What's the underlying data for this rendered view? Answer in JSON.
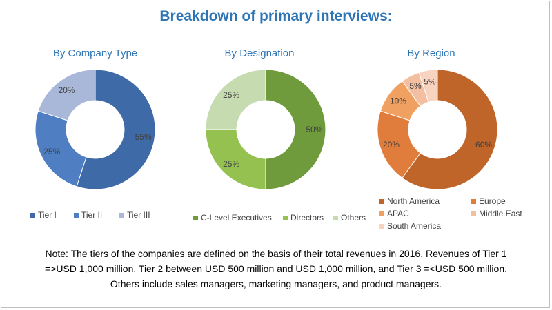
{
  "title": "Breakdown of primary interviews:",
  "chart_data": [
    {
      "type": "pie",
      "title": "By Company Type",
      "categories": [
        "Tier I",
        "Tier II",
        "Tier III"
      ],
      "values": [
        55,
        25,
        20
      ],
      "labels": [
        "55%",
        "25%",
        "20%"
      ],
      "colors": [
        "#3f6aa8",
        "#4f7fc2",
        "#a9b8d9"
      ],
      "legend": "bottom"
    },
    {
      "type": "pie",
      "title": "By Designation",
      "categories": [
        "C-Level Executives",
        "Directors",
        "Others"
      ],
      "values": [
        50,
        25,
        25
      ],
      "labels": [
        "50%",
        "25%",
        "25%"
      ],
      "colors": [
        "#6f9b3c",
        "#94c150",
        "#c7dbb0"
      ],
      "legend": "bottom"
    },
    {
      "type": "pie",
      "title": "By Region",
      "categories": [
        "North America",
        "Europe",
        "APAC",
        "Middle East",
        "South America"
      ],
      "values": [
        60,
        20,
        10,
        5,
        5
      ],
      "labels": [
        "60%",
        "20%",
        "10%",
        "5%",
        "5%"
      ],
      "colors": [
        "#c0652a",
        "#e07d3c",
        "#f0a060",
        "#f3bfa0",
        "#f8d3c0"
      ],
      "legend": "bottom"
    }
  ],
  "note": {
    "line1": "Note: The tiers of the companies are defined on the basis of their total revenues in 2016. Revenues of Tier 1",
    "line2": "=>USD 1,000 million, Tier 2 between USD 500 million and USD 1,000 million, and Tier 3 =<USD 500 million.",
    "line3": "Others include sales managers, marketing managers, and product managers."
  }
}
